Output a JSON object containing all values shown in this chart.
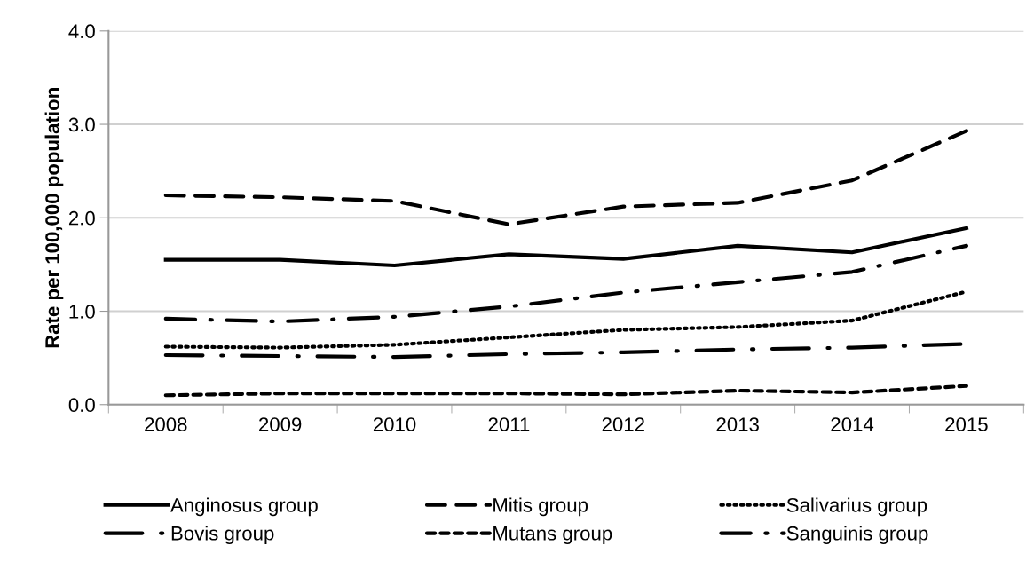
{
  "chart_data": {
    "type": "line",
    "ylabel": "Rate per 100,000 population",
    "categories": [
      "2008",
      "2009",
      "2010",
      "2011",
      "2012",
      "2013",
      "2014",
      "2015"
    ],
    "series": [
      {
        "name": "Anginosus group",
        "color": "#000000",
        "line_style": "solid",
        "values": [
          1.55,
          1.55,
          1.49,
          1.61,
          1.56,
          1.7,
          1.63,
          1.89
        ]
      },
      {
        "name": "Bovis group",
        "color": "#000000",
        "line_style": "longdashdot",
        "values": [
          0.53,
          0.52,
          0.51,
          0.54,
          0.56,
          0.59,
          0.61,
          0.65
        ]
      },
      {
        "name": "Mitis group",
        "color": "#000000",
        "line_style": "dashed",
        "values": [
          2.24,
          2.22,
          2.18,
          1.93,
          2.12,
          2.16,
          2.4,
          2.93
        ]
      },
      {
        "name": "Mutans group",
        "color": "#000000",
        "line_style": "shortdashed",
        "values": [
          0.1,
          0.12,
          0.12,
          0.12,
          0.11,
          0.15,
          0.13,
          0.2
        ]
      },
      {
        "name": "Salivarius group",
        "color": "#000000",
        "line_style": "dotted",
        "values": [
          0.62,
          0.61,
          0.64,
          0.72,
          0.8,
          0.83,
          0.9,
          1.21
        ]
      },
      {
        "name": "Sanguinis group",
        "color": "#000000",
        "line_style": "dashdot",
        "values": [
          0.92,
          0.89,
          0.94,
          1.05,
          1.2,
          1.31,
          1.42,
          1.7
        ]
      }
    ],
    "ylim": [
      0,
      4
    ],
    "yticks": [
      {
        "value": 0,
        "label": "0.0"
      },
      {
        "value": 1,
        "label": "1.0"
      },
      {
        "value": 2,
        "label": "2.0"
      },
      {
        "value": 3,
        "label": "3.0"
      },
      {
        "value": 4,
        "label": "4.0"
      }
    ],
    "grid": "y",
    "legend": "bottom",
    "marker": "none"
  }
}
